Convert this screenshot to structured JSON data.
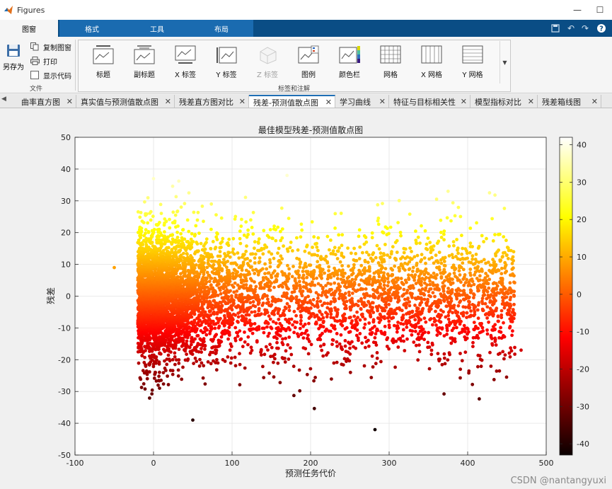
{
  "window": {
    "title": "Figures",
    "controls": {
      "minimize": "—",
      "maximize": "☐"
    }
  },
  "ribbon_tabs": [
    {
      "label": "图窗",
      "active": true
    },
    {
      "label": "格式",
      "active": false
    },
    {
      "label": "工具",
      "active": false
    },
    {
      "label": "布局",
      "active": false
    }
  ],
  "quick_access": [
    "save-icon",
    "undo-icon",
    "redo-icon",
    "help-icon"
  ],
  "file_section": {
    "save_as": "另存为",
    "copy_figure": "复制图窗",
    "print": "打印",
    "show_code": "显示代码",
    "section_label": "文件"
  },
  "annotation_section": {
    "section_label": "标签和注解",
    "buttons": [
      {
        "label": "标题",
        "icon": "title-icon",
        "enabled": true
      },
      {
        "label": "副标题",
        "icon": "subtitle-icon",
        "enabled": true
      },
      {
        "label": "X 标签",
        "icon": "x-label-icon",
        "enabled": true
      },
      {
        "label": "Y 标签",
        "icon": "y-label-icon",
        "enabled": true
      },
      {
        "label": "Z 标签",
        "icon": "z-label-icon",
        "enabled": false
      },
      {
        "label": "图例",
        "icon": "legend-icon",
        "enabled": true
      },
      {
        "label": "颜色栏",
        "icon": "colorbar-icon",
        "enabled": true
      },
      {
        "label": "网格",
        "icon": "grid-icon",
        "enabled": true
      },
      {
        "label": "X 网格",
        "icon": "x-grid-icon",
        "enabled": true
      },
      {
        "label": "Y 网格",
        "icon": "y-grid-icon",
        "enabled": true
      }
    ]
  },
  "doc_tabs": [
    {
      "label": "曲率直方图",
      "active": false
    },
    {
      "label": "真实值与预测值散点图",
      "active": false
    },
    {
      "label": "残差直方图对比",
      "active": false
    },
    {
      "label": "残差-预测值散点图",
      "active": true
    },
    {
      "label": "学习曲线",
      "active": false
    },
    {
      "label": "特征与目标相关性",
      "active": false
    },
    {
      "label": "模型指标对比",
      "active": false
    },
    {
      "label": "残差箱线图",
      "active": false
    }
  ],
  "close_symbol": "✕",
  "watermark": "CSDN @nantangyuxi",
  "colors": {
    "ribbon_blue": "#0a4d85",
    "active_tab_border": "#1f6fb5"
  },
  "chart_data": {
    "type": "scatter",
    "title": "最佳模型残差-预测值散点图",
    "xlabel": "预测任务代价",
    "ylabel": "残差",
    "xlim": [
      -100,
      500
    ],
    "ylim": [
      -50,
      50
    ],
    "xticks": [
      -100,
      0,
      100,
      200,
      300,
      400,
      500
    ],
    "yticks": [
      -50,
      -40,
      -30,
      -20,
      -10,
      0,
      10,
      20,
      30,
      40,
      50
    ],
    "grid": true,
    "colormap": "hot",
    "color_by": "residual",
    "colorbar": {
      "position": "right",
      "limits": [
        -43,
        42
      ],
      "ticks": [
        -40,
        -30,
        -20,
        -10,
        0,
        10,
        20,
        30,
        40
      ]
    },
    "point_count_approx": 6000,
    "distribution": {
      "x_range": [
        -50,
        470
      ],
      "y_center": 0,
      "y_spread": 10,
      "note_points": [
        {
          "x": -50,
          "y": 9
        },
        {
          "x": 50,
          "y": -39
        },
        {
          "x": 282,
          "y": -42
        },
        {
          "x": 0,
          "y": 37
        },
        {
          "x": 170,
          "y": 38
        },
        {
          "x": 375,
          "y": 33
        },
        {
          "x": 468,
          "y": -17
        }
      ]
    }
  }
}
